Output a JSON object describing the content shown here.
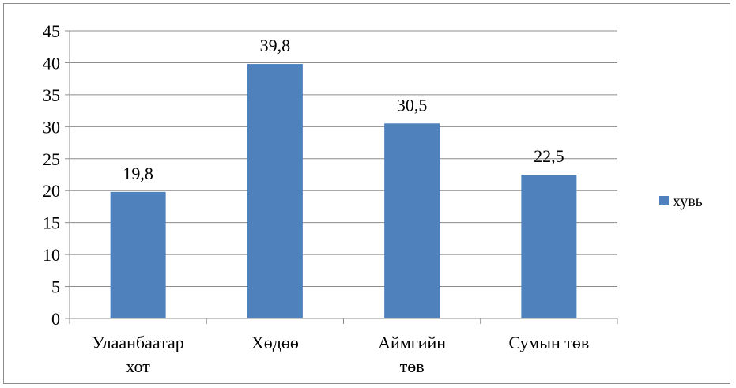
{
  "chart_data": {
    "type": "bar",
    "categories": [
      [
        "Улаанбаатар",
        "хот"
      ],
      [
        "Хөдөө"
      ],
      [
        "Аймгийн",
        "төв"
      ],
      [
        "Сумын төв"
      ]
    ],
    "series": [
      {
        "name": "хувь",
        "values": [
          19.8,
          39.8,
          30.5,
          22.5
        ],
        "color": "#4f81bd"
      }
    ],
    "data_labels": [
      "19,8",
      "39,8",
      "30,5",
      "22,5"
    ],
    "ylim": [
      0,
      45
    ],
    "yticks": [
      0,
      5,
      10,
      15,
      20,
      25,
      30,
      35,
      40,
      45
    ],
    "grid": true,
    "legend": "right",
    "title": "",
    "xlabel": "",
    "ylabel": ""
  }
}
